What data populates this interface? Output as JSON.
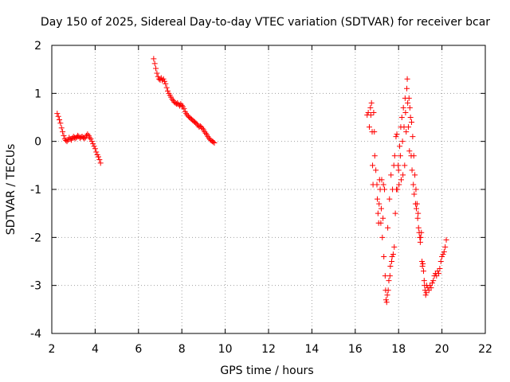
{
  "chart_data": {
    "type": "scatter",
    "title": "Day 150 of 2025, Sidereal Day-to-day VTEC variation (SDTVAR) for receiver bcar",
    "xlabel": "GPS time / hours",
    "ylabel": "SDTVAR / TECUs",
    "xlim": [
      2,
      22
    ],
    "ylim": [
      -4,
      2
    ],
    "xticks": [
      2,
      4,
      6,
      8,
      10,
      12,
      14,
      16,
      18,
      20,
      22
    ],
    "yticks": [
      -4,
      -3,
      -2,
      -1,
      0,
      1,
      2
    ],
    "grid": true,
    "marker": "+",
    "color": "#ff0000",
    "series": [
      {
        "name": "SDTVAR",
        "points": [
          [
            2.25,
            0.58
          ],
          [
            2.3,
            0.52
          ],
          [
            2.35,
            0.45
          ],
          [
            2.4,
            0.38
          ],
          [
            2.45,
            0.28
          ],
          [
            2.5,
            0.2
          ],
          [
            2.55,
            0.12
          ],
          [
            2.6,
            0.05
          ],
          [
            2.65,
            0.02
          ],
          [
            2.7,
            0.0
          ],
          [
            2.75,
            0.03
          ],
          [
            2.8,
            0.08
          ],
          [
            2.85,
            0.05
          ],
          [
            2.9,
            0.03
          ],
          [
            2.95,
            0.07
          ],
          [
            3.0,
            0.1
          ],
          [
            3.05,
            0.08
          ],
          [
            3.1,
            0.06
          ],
          [
            3.15,
            0.09
          ],
          [
            3.2,
            0.12
          ],
          [
            3.25,
            0.1
          ],
          [
            3.3,
            0.07
          ],
          [
            3.35,
            0.09
          ],
          [
            3.4,
            0.1
          ],
          [
            3.45,
            0.08
          ],
          [
            3.5,
            0.06
          ],
          [
            3.55,
            0.08
          ],
          [
            3.6,
            0.12
          ],
          [
            3.65,
            0.15
          ],
          [
            3.7,
            0.12
          ],
          [
            3.75,
            0.08
          ],
          [
            3.8,
            0.05
          ],
          [
            3.85,
            0.0
          ],
          [
            3.9,
            -0.05
          ],
          [
            3.95,
            -0.1
          ],
          [
            4.0,
            -0.15
          ],
          [
            4.05,
            -0.22
          ],
          [
            4.1,
            -0.28
          ],
          [
            4.15,
            -0.32
          ],
          [
            4.2,
            -0.38
          ],
          [
            4.25,
            -0.45
          ],
          [
            6.7,
            1.72
          ],
          [
            6.75,
            1.62
          ],
          [
            6.8,
            1.52
          ],
          [
            6.85,
            1.42
          ],
          [
            6.9,
            1.35
          ],
          [
            6.95,
            1.3
          ],
          [
            7.0,
            1.28
          ],
          [
            7.05,
            1.32
          ],
          [
            7.1,
            1.27
          ],
          [
            7.15,
            1.3
          ],
          [
            7.2,
            1.25
          ],
          [
            7.25,
            1.2
          ],
          [
            7.3,
            1.12
          ],
          [
            7.35,
            1.05
          ],
          [
            7.4,
            1.0
          ],
          [
            7.45,
            0.96
          ],
          [
            7.5,
            0.92
          ],
          [
            7.55,
            0.88
          ],
          [
            7.6,
            0.85
          ],
          [
            7.65,
            0.82
          ],
          [
            7.7,
            0.8
          ],
          [
            7.75,
            0.78
          ],
          [
            7.8,
            0.8
          ],
          [
            7.85,
            0.77
          ],
          [
            7.9,
            0.74
          ],
          [
            7.95,
            0.78
          ],
          [
            8.0,
            0.75
          ],
          [
            8.05,
            0.72
          ],
          [
            8.1,
            0.68
          ],
          [
            8.15,
            0.62
          ],
          [
            8.2,
            0.58
          ],
          [
            8.25,
            0.55
          ],
          [
            8.3,
            0.52
          ],
          [
            8.35,
            0.5
          ],
          [
            8.4,
            0.48
          ],
          [
            8.45,
            0.46
          ],
          [
            8.5,
            0.44
          ],
          [
            8.55,
            0.42
          ],
          [
            8.6,
            0.4
          ],
          [
            8.65,
            0.38
          ],
          [
            8.7,
            0.36
          ],
          [
            8.75,
            0.33
          ],
          [
            8.8,
            0.3
          ],
          [
            8.85,
            0.32
          ],
          [
            8.9,
            0.3
          ],
          [
            8.95,
            0.27
          ],
          [
            9.0,
            0.24
          ],
          [
            9.05,
            0.2
          ],
          [
            9.1,
            0.17
          ],
          [
            9.15,
            0.14
          ],
          [
            9.2,
            0.1
          ],
          [
            9.25,
            0.07
          ],
          [
            9.3,
            0.04
          ],
          [
            9.35,
            0.02
          ],
          [
            9.4,
            0.0
          ],
          [
            9.45,
            -0.01
          ],
          [
            9.5,
            -0.03
          ],
          [
            16.55,
            0.55
          ],
          [
            16.6,
            0.6
          ],
          [
            16.65,
            0.3
          ],
          [
            16.7,
            0.7
          ],
          [
            16.72,
            0.55
          ],
          [
            16.75,
            0.8
          ],
          [
            16.78,
            0.2
          ],
          [
            16.8,
            -0.5
          ],
          [
            16.82,
            -0.9
          ],
          [
            16.85,
            0.6
          ],
          [
            16.88,
            0.2
          ],
          [
            16.9,
            -0.3
          ],
          [
            16.95,
            -0.6
          ],
          [
            17.0,
            -0.9
          ],
          [
            17.02,
            -1.2
          ],
          [
            17.05,
            -1.5
          ],
          [
            17.08,
            -1.7
          ],
          [
            17.1,
            -1.3
          ],
          [
            17.12,
            -0.8
          ],
          [
            17.15,
            -1.0
          ],
          [
            17.18,
            -1.7
          ],
          [
            17.2,
            -1.4
          ],
          [
            17.22,
            -0.8
          ],
          [
            17.25,
            -2.0
          ],
          [
            17.28,
            -1.6
          ],
          [
            17.3,
            -0.9
          ],
          [
            17.32,
            -2.4
          ],
          [
            17.35,
            -1.0
          ],
          [
            17.38,
            -2.8
          ],
          [
            17.4,
            -3.1
          ],
          [
            17.42,
            -3.3
          ],
          [
            17.45,
            -3.35
          ],
          [
            17.48,
            -3.2
          ],
          [
            17.5,
            -1.8
          ],
          [
            17.52,
            -3.1
          ],
          [
            17.55,
            -2.9
          ],
          [
            17.58,
            -1.2
          ],
          [
            17.6,
            -2.8
          ],
          [
            17.62,
            -2.6
          ],
          [
            17.65,
            -0.7
          ],
          [
            17.68,
            -2.5
          ],
          [
            17.7,
            -2.4
          ],
          [
            17.72,
            -1.0
          ],
          [
            17.75,
            -2.35
          ],
          [
            17.78,
            -0.5
          ],
          [
            17.8,
            -2.2
          ],
          [
            17.82,
            -0.3
          ],
          [
            17.85,
            -1.5
          ],
          [
            17.88,
            0.1
          ],
          [
            17.9,
            -1.0
          ],
          [
            17.92,
            0.15
          ],
          [
            17.95,
            -1.0
          ],
          [
            17.98,
            -0.5
          ],
          [
            18.0,
            -0.6
          ],
          [
            18.02,
            -0.9
          ],
          [
            18.05,
            -0.1
          ],
          [
            18.08,
            -0.3
          ],
          [
            18.1,
            0.3
          ],
          [
            18.12,
            -0.8
          ],
          [
            18.15,
            0.5
          ],
          [
            18.18,
            0.0
          ],
          [
            18.2,
            -0.7
          ],
          [
            18.22,
            0.7
          ],
          [
            18.25,
            0.3
          ],
          [
            18.28,
            -0.5
          ],
          [
            18.3,
            0.9
          ],
          [
            18.32,
            0.6
          ],
          [
            18.35,
            0.2
          ],
          [
            18.38,
            1.1
          ],
          [
            18.4,
            1.3
          ],
          [
            18.42,
            0.8
          ],
          [
            18.45,
            0.3
          ],
          [
            18.48,
            0.9
          ],
          [
            18.5,
            -0.2
          ],
          [
            18.52,
            0.7
          ],
          [
            18.55,
            0.5
          ],
          [
            18.58,
            -0.3
          ],
          [
            18.6,
            0.4
          ],
          [
            18.62,
            -0.6
          ],
          [
            18.65,
            0.1
          ],
          [
            18.68,
            -0.9
          ],
          [
            18.7,
            -0.3
          ],
          [
            18.72,
            -1.1
          ],
          [
            18.75,
            -0.7
          ],
          [
            18.78,
            -1.3
          ],
          [
            18.8,
            -1.0
          ],
          [
            18.82,
            -1.4
          ],
          [
            18.85,
            -1.3
          ],
          [
            18.88,
            -1.6
          ],
          [
            18.9,
            -1.5
          ],
          [
            18.92,
            -1.8
          ],
          [
            18.95,
            -1.9
          ],
          [
            18.98,
            -2.0
          ],
          [
            19.0,
            -2.1
          ],
          [
            19.02,
            -2.0
          ],
          [
            19.05,
            -1.9
          ],
          [
            19.08,
            -2.5
          ],
          [
            19.1,
            -2.6
          ],
          [
            19.12,
            -2.55
          ],
          [
            19.15,
            -2.7
          ],
          [
            19.18,
            -2.9
          ],
          [
            19.2,
            -3.0
          ],
          [
            19.22,
            -3.1
          ],
          [
            19.25,
            -3.2
          ],
          [
            19.28,
            -3.15
          ],
          [
            19.3,
            -3.0
          ],
          [
            19.35,
            -3.05
          ],
          [
            19.4,
            -3.1
          ],
          [
            19.45,
            -3.0
          ],
          [
            19.5,
            -3.05
          ],
          [
            19.55,
            -2.95
          ],
          [
            19.6,
            -2.9
          ],
          [
            19.65,
            -2.8
          ],
          [
            19.7,
            -2.75
          ],
          [
            19.75,
            -2.8
          ],
          [
            19.8,
            -2.7
          ],
          [
            19.85,
            -2.75
          ],
          [
            19.9,
            -2.65
          ],
          [
            19.95,
            -2.5
          ],
          [
            20.0,
            -2.4
          ],
          [
            20.05,
            -2.35
          ],
          [
            20.1,
            -2.3
          ],
          [
            20.15,
            -2.2
          ],
          [
            20.2,
            -2.05
          ]
        ]
      }
    ]
  }
}
